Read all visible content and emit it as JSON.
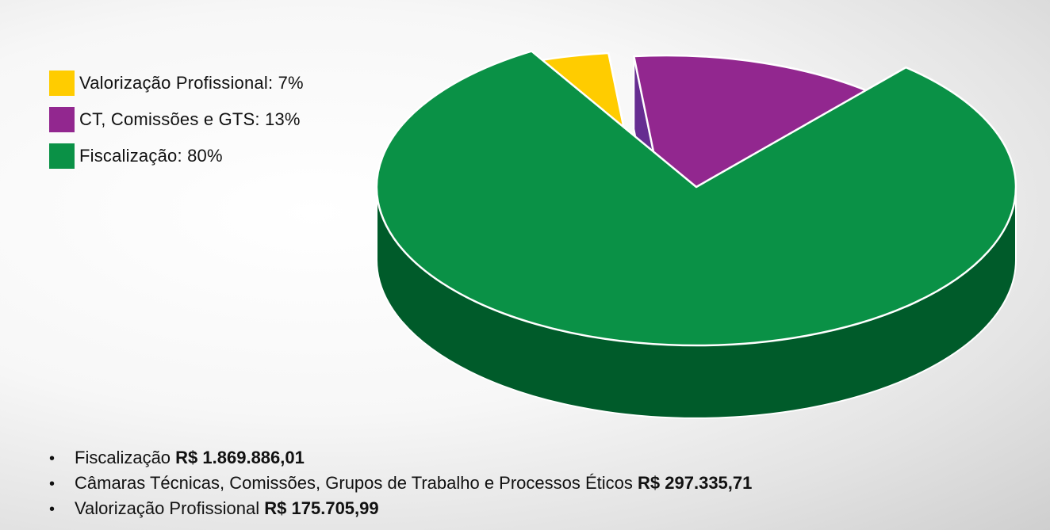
{
  "chart_data": {
    "type": "pie",
    "style": "3d-exploded",
    "slices": [
      {
        "label": "Valorização Profissional",
        "value": 7,
        "display": "7%",
        "color": "#FFCC00",
        "side_color": "#F9B233"
      },
      {
        "label": "CT, Comissões e GTS",
        "value": 13,
        "display": "13%",
        "color": "#92278F",
        "side_color": "#662D91"
      },
      {
        "label": "Fiscalização",
        "value": 80,
        "display": "80%",
        "color": "#0A9146",
        "side_color": "#005B2A"
      }
    ],
    "legend_position": "top-left"
  },
  "amounts": [
    {
      "label": "Fiscalização",
      "value": "R$ 1.869.886,01"
    },
    {
      "label": "Câmaras Técnicas, Comissões, Grupos de Trabalho e Processos Éticos",
      "value": "R$ 297.335,71"
    },
    {
      "label": "Valorização Profissional",
      "value": "R$ 175.705,99"
    }
  ],
  "bullet_symbol": "•"
}
